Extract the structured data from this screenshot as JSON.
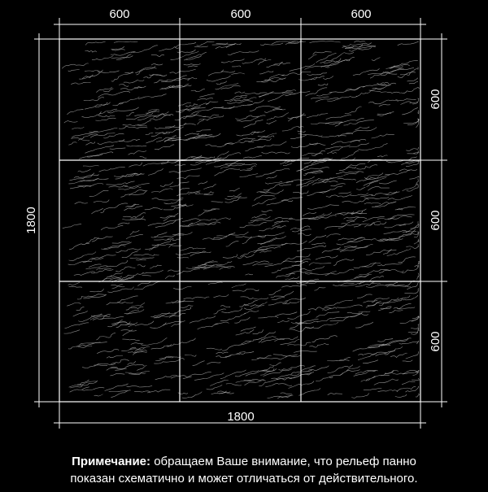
{
  "dimensions": {
    "top": [
      600,
      600,
      600
    ],
    "right": [
      600,
      600,
      600
    ],
    "left": 1800,
    "bottom": 1800
  },
  "note": {
    "label": "Примечание:",
    "line1": "обращаем Ваше внимание, что рельеф панно",
    "line2": "показан схематично и может отличаться от действительного."
  }
}
